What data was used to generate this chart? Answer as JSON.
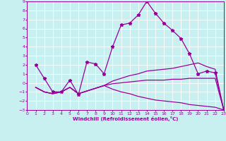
{
  "xlabel": "Windchill (Refroidissement éolien,°C)",
  "bg_color": "#c8f0f0",
  "line_color": "#990099",
  "grid_color": "#ffffff",
  "xlim": [
    0,
    23
  ],
  "ylim": [
    -3,
    9
  ],
  "xticks": [
    0,
    1,
    2,
    3,
    4,
    5,
    6,
    7,
    8,
    9,
    10,
    11,
    12,
    13,
    14,
    15,
    16,
    17,
    18,
    19,
    20,
    21,
    22,
    23
  ],
  "yticks": [
    -3,
    -2,
    -1,
    0,
    1,
    2,
    3,
    4,
    5,
    6,
    7,
    8,
    9
  ],
  "line1_x": [
    1,
    2,
    3,
    4,
    5,
    6,
    7,
    8,
    9,
    10,
    11,
    12,
    13,
    14,
    15,
    16,
    17,
    18,
    19,
    20,
    21,
    22,
    23
  ],
  "line1_y": [
    2,
    0.5,
    -1,
    -1,
    0.3,
    -1.3,
    2.3,
    2.1,
    1,
    4,
    6.4,
    6.6,
    7.5,
    9,
    7.7,
    6.6,
    5.8,
    4.9,
    3.2,
    1,
    1.3,
    1.1,
    -3
  ],
  "line2_x": [
    1,
    2,
    3,
    4,
    5,
    6,
    7,
    8,
    9,
    10,
    11,
    12,
    13,
    14,
    15,
    16,
    17,
    18,
    19,
    20,
    21,
    22,
    23
  ],
  "line2_y": [
    -0.5,
    -1,
    -1.2,
    -1.0,
    -0.5,
    -1.2,
    -0.9,
    -0.6,
    -0.3,
    0.2,
    0.5,
    0.8,
    1.0,
    1.3,
    1.4,
    1.5,
    1.6,
    1.8,
    2.0,
    2.2,
    1.8,
    1.5,
    -3
  ],
  "line3_x": [
    1,
    2,
    3,
    4,
    5,
    6,
    7,
    8,
    9,
    10,
    11,
    12,
    13,
    14,
    15,
    16,
    17,
    18,
    19,
    20,
    21,
    22,
    23
  ],
  "line3_y": [
    -0.5,
    -1,
    -1.2,
    -1.0,
    -0.5,
    -1.2,
    -0.9,
    -0.6,
    -0.3,
    -0.1,
    0.0,
    0.1,
    0.2,
    0.3,
    0.3,
    0.3,
    0.4,
    0.4,
    0.5,
    0.5,
    0.5,
    0.5,
    -3
  ],
  "line4_x": [
    1,
    2,
    3,
    4,
    5,
    6,
    7,
    8,
    9,
    10,
    11,
    12,
    13,
    14,
    15,
    16,
    17,
    18,
    19,
    20,
    21,
    22,
    23
  ],
  "line4_y": [
    -0.5,
    -1,
    -1.2,
    -1.0,
    -0.5,
    -1.2,
    -0.9,
    -0.6,
    -0.3,
    -0.7,
    -1.0,
    -1.2,
    -1.5,
    -1.7,
    -1.9,
    -2.0,
    -2.1,
    -2.2,
    -2.4,
    -2.5,
    -2.6,
    -2.7,
    -3
  ]
}
